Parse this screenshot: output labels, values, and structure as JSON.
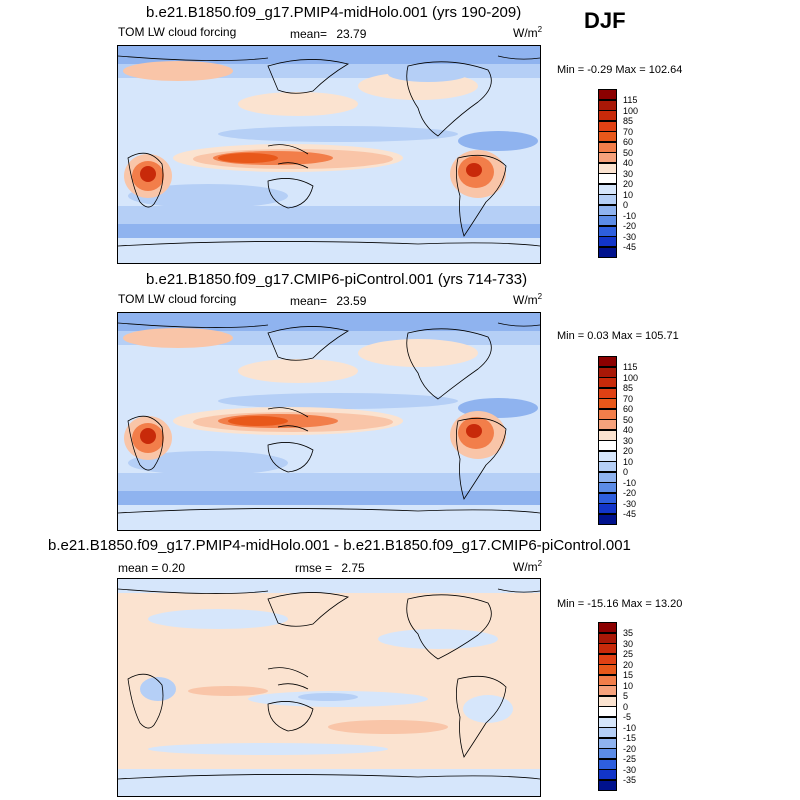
{
  "season": "DJF",
  "colors": {
    "dark_red": "#8b0000",
    "red": "#c82a0a",
    "orange_red": "#e8581a",
    "orange": "#f27e4a",
    "salmon": "#f6a27c",
    "peach": "#f9c5a8",
    "light_peach": "#fbe3d0",
    "white": "#ffffff",
    "pale_blue": "#d6e6fb",
    "light_blue": "#b5cff6",
    "blue": "#8fb3ef",
    "mid_blue": "#5c8ce6",
    "strong_blue": "#2e5fde",
    "deep_blue": "#1235c9",
    "navy": "#00128d"
  },
  "panels": [
    {
      "title": "b.e21.B1850.f09_g17.PMIP4-midHolo.001 (yrs 190-209)",
      "left_label": "TOM LW cloud forcing",
      "mean_label": "mean=",
      "mean_value": "23.79",
      "units": "W/m",
      "units_sup": "2",
      "minmax": "Min =  -0.29 Max = 102.64",
      "chart_data": {
        "type": "heatmap",
        "title": "b.e21.B1850.f09_g17.PMIP4-midHolo.001 (yrs 190-209)",
        "variable": "TOM LW cloud forcing",
        "mean": 23.79,
        "min": -0.29,
        "max": 102.64,
        "units": "W/m2",
        "colorbar_levels": [
          "115",
          "100",
          "85",
          "70",
          "60",
          "50",
          "40",
          "30",
          "20",
          "10",
          "0",
          "-10",
          "-20",
          "-30",
          "-45"
        ]
      }
    },
    {
      "title": "b.e21.B1850.f09_g17.CMIP6-piControl.001 (yrs 714-733)",
      "left_label": "TOM LW cloud forcing",
      "mean_label": "mean=",
      "mean_value": "23.59",
      "units": "W/m",
      "units_sup": "2",
      "minmax": "Min =  0.03 Max = 105.71",
      "chart_data": {
        "type": "heatmap",
        "title": "b.e21.B1850.f09_g17.CMIP6-piControl.001 (yrs 714-733)",
        "variable": "TOM LW cloud forcing",
        "mean": 23.59,
        "min": 0.03,
        "max": 105.71,
        "units": "W/m2",
        "colorbar_levels": [
          "115",
          "100",
          "85",
          "70",
          "60",
          "50",
          "40",
          "30",
          "20",
          "10",
          "0",
          "-10",
          "-20",
          "-30",
          "-45"
        ]
      }
    },
    {
      "title": "b.e21.B1850.f09_g17.PMIP4-midHolo.001 - b.e21.B1850.f09_g17.CMIP6-piControl.001",
      "left_label": "mean =   0.20",
      "mean_label": "rmse =",
      "mean_value": "2.75",
      "units": "W/m",
      "units_sup": "2",
      "minmax": "Min = -15.16 Max =  13.20",
      "chart_data": {
        "type": "heatmap",
        "title": "b.e21.B1850.f09_g17.PMIP4-midHolo.001 - b.e21.B1850.f09_g17.CMIP6-piControl.001",
        "mean": 0.2,
        "rmse": 2.75,
        "min": -15.16,
        "max": 13.2,
        "units": "W/m2",
        "colorbar_levels": [
          "35",
          "30",
          "25",
          "20",
          "15",
          "10",
          "5",
          "0",
          "-5",
          "-10",
          "-15",
          "-20",
          "-25",
          "-30",
          "-35"
        ]
      }
    }
  ]
}
